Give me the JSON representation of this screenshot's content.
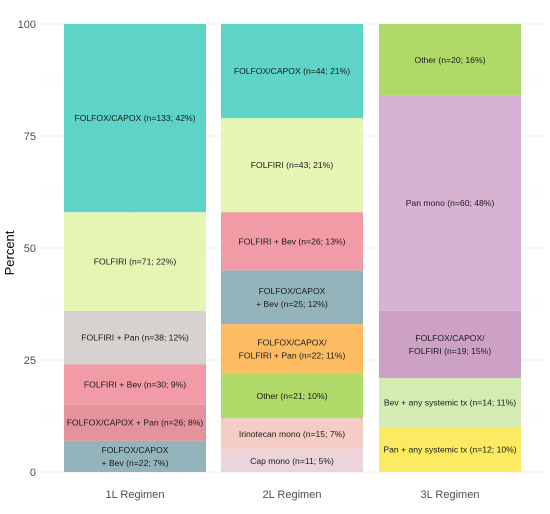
{
  "chart_data": {
    "type": "bar",
    "stacked": true,
    "orientation": "vertical",
    "title": "",
    "xlabel": "",
    "ylabel": "Percent",
    "ylim": [
      0,
      100
    ],
    "yticks": [
      0,
      25,
      50,
      75,
      100
    ],
    "grid": true,
    "legend": "none",
    "categories": [
      "1L Regimen",
      "2L Regimen",
      "3L Regimen"
    ],
    "bars": [
      {
        "category": "1L Regimen",
        "segments": [
          {
            "label": "FOLFOX/CAPOX\n+ Bev (n=22; 7%)",
            "value": 7,
            "color": "#94b4bc"
          },
          {
            "label": "FOLFOX/CAPOX + Pan (n=26; 8%)",
            "value": 8,
            "color": "#e4929b"
          },
          {
            "label": "FOLFIRI + Bev (n=30; 9%)",
            "value": 9,
            "color": "#f19ba6"
          },
          {
            "label": "FOLFIRI + Pan (n=38; 12%)",
            "value": 12,
            "color": "#d7d1cf"
          },
          {
            "label": "FOLFIRI (n=71; 22%)",
            "value": 22,
            "color": "#e5f6b4"
          },
          {
            "label": "FOLFOX/CAPOX (n=133; 42%)",
            "value": 42,
            "color": "#5dd4c6"
          }
        ]
      },
      {
        "category": "2L Regimen",
        "segments": [
          {
            "label": "Cap mono (n=11; 5%)",
            "value": 5,
            "color": "#ebd4dc"
          },
          {
            "label": "Irinotecan mono (n=15; 7%)",
            "value": 7,
            "color": "#f6cdc6"
          },
          {
            "label": "Other (n=21; 10%)",
            "value": 10,
            "color": "#afd968"
          },
          {
            "label": "FOLFOX/CAPOX/\nFOLFIRI + Pan (n=22; 11%)",
            "value": 11,
            "color": "#fdbc61"
          },
          {
            "label": "FOLFOX/CAPOX\n+ Bev (n=25; 12%)",
            "value": 12,
            "color": "#94b4bc"
          },
          {
            "label": "FOLFIRI + Bev (n=26; 13%)",
            "value": 13,
            "color": "#f19ba6"
          },
          {
            "label": "FOLFIRI (n=43; 21%)",
            "value": 21,
            "color": "#e5f6b4"
          },
          {
            "label": "FOLFOX/CAPOX (n=44; 21%)",
            "value": 21,
            "color": "#5dd4c6"
          }
        ]
      },
      {
        "category": "3L Regimen",
        "segments": [
          {
            "label": "Pan + any systemic tx (n=12; 10%)",
            "value": 10,
            "color": "#fbea62"
          },
          {
            "label": "Bev + any systemic tx (n=14; 11%)",
            "value": 11,
            "color": "#d3ecb4"
          },
          {
            "label": "FOLFOX/CAPOX/\nFOLFIRI (n=19; 15%)",
            "value": 15,
            "color": "#cda1c6"
          },
          {
            "label": "Pan mono (n=60; 48%)",
            "value": 48,
            "color": "#d8b2d2"
          },
          {
            "label": "Other (n=20; 16%)",
            "value": 16,
            "color": "#afd968"
          }
        ]
      }
    ]
  }
}
